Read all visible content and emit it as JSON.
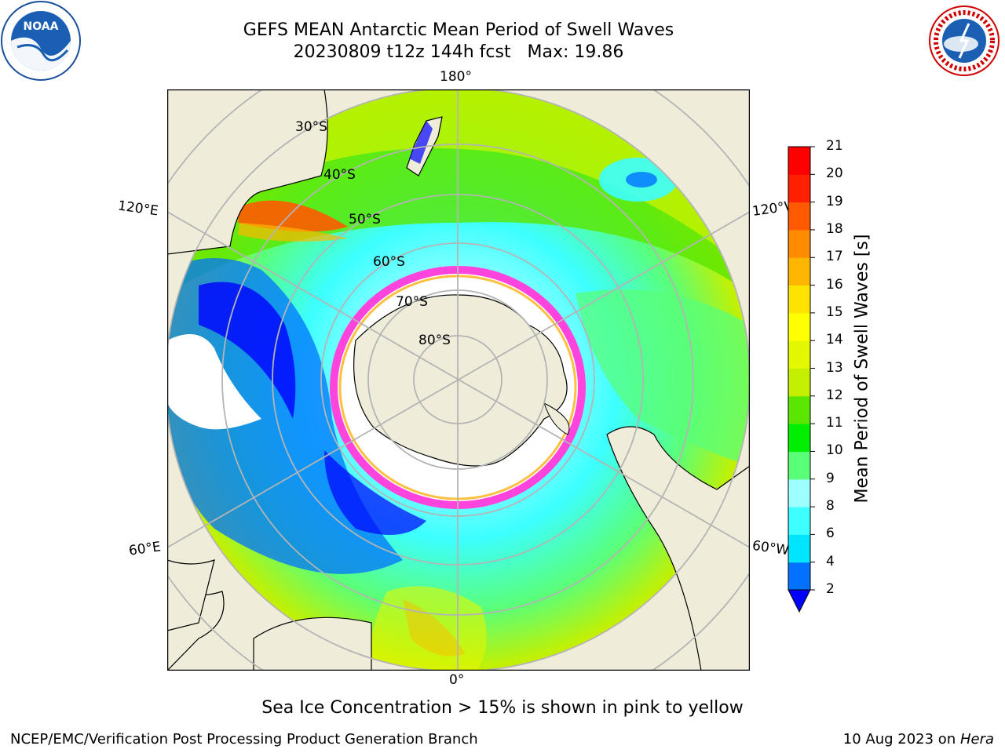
{
  "title": {
    "line1": "GEFS MEAN Antarctic Mean Period of Swell Waves",
    "line2": "20230809 t12z 144h fcst   Max: 19.86"
  },
  "logos": {
    "left": "noaa-logo",
    "right": "nws-logo",
    "left_text": "NOAA",
    "right_text": "NATIONAL WEATHER SERVICE"
  },
  "map": {
    "projection": "south-polar-stereographic",
    "lon_labels": {
      "top": "180°",
      "bottom": "0°",
      "upper_left": "120°E",
      "upper_right": "120°W",
      "lower_left": "60°E",
      "lower_right": "60°W"
    },
    "lat_labels": [
      "30°S",
      "40°S",
      "50°S",
      "60°S",
      "70°S",
      "80°S"
    ],
    "colors": {
      "land": "#efedda",
      "ice_edge": "#ff44dd",
      "ice_inner": "#ffc040",
      "grid": "#b4b4b4"
    }
  },
  "colorbar": {
    "label": "Mean Period of Swell Waves [s]",
    "ticks": [
      "2",
      "4",
      "6",
      "8",
      "9",
      "10",
      "11",
      "12",
      "13",
      "14",
      "15",
      "16",
      "17",
      "18",
      "19",
      "20",
      "21"
    ],
    "colors": [
      "#0072ff",
      "#00e5ff",
      "#3dffff",
      "#9dffff",
      "#5aff78",
      "#00ee00",
      "#5ae600",
      "#c4f000",
      "#e3f700",
      "#ffff00",
      "#ffe300",
      "#ffb600",
      "#ff8c00",
      "#ff5a00",
      "#ff2000",
      "#ff0000"
    ],
    "under_color": "#0000ff"
  },
  "note": "Sea Ice Concentration > 15% is shown in pink to yellow",
  "credit": "NCEP/EMC/Verification Post Processing Product Generation Branch",
  "date": {
    "text": "10 Aug 2023 on ",
    "machine": "Hera"
  }
}
